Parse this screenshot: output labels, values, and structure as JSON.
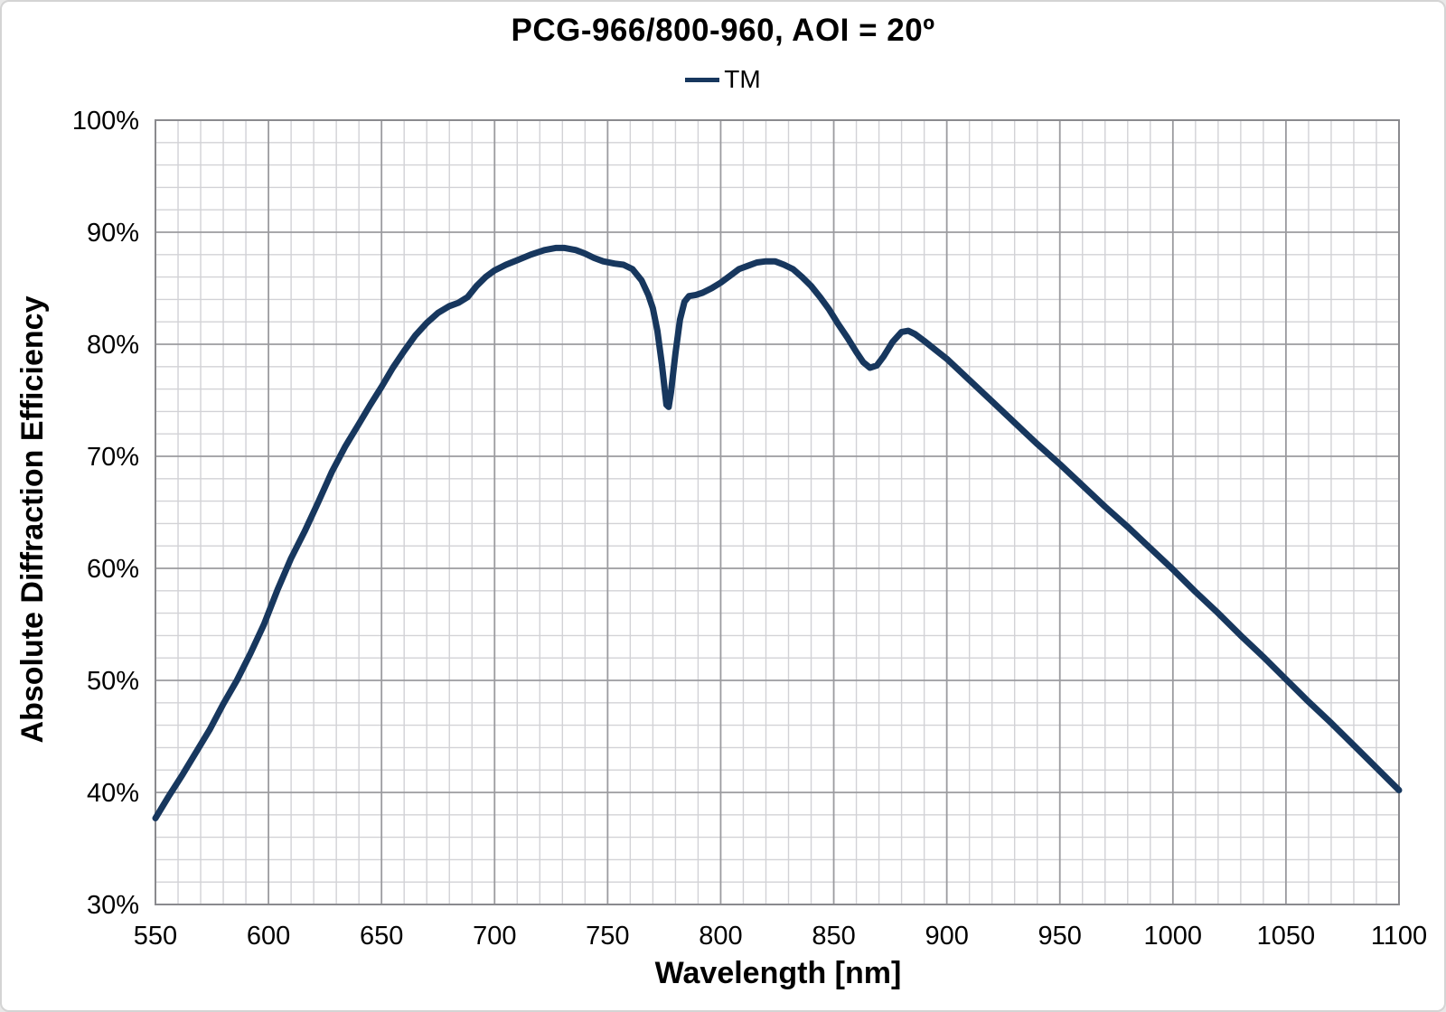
{
  "figure": {
    "title": "PCG-966/800-960, AOI = 20º",
    "legend": {
      "label": "TM"
    }
  },
  "chart_data": {
    "type": "line",
    "title": "PCG-966/800-960, AOI = 20º",
    "legend_entries": [
      "TM"
    ],
    "legend_position": "top-center",
    "grid": "major and minor gridlines on, full plot border",
    "x_axis": {
      "title": "Wavelength [nm]",
      "min": 550,
      "max": 1100,
      "major_step": 50,
      "minor_step": 10,
      "ticks": [
        {
          "v": 550,
          "label": "550"
        },
        {
          "v": 600,
          "label": "600"
        },
        {
          "v": 650,
          "label": "650"
        },
        {
          "v": 700,
          "label": "700"
        },
        {
          "v": 750,
          "label": "750"
        },
        {
          "v": 800,
          "label": "800"
        },
        {
          "v": 850,
          "label": "850"
        },
        {
          "v": 900,
          "label": "900"
        },
        {
          "v": 950,
          "label": "950"
        },
        {
          "v": 1000,
          "label": "1000"
        },
        {
          "v": 1050,
          "label": "1050"
        },
        {
          "v": 1100,
          "label": "1100"
        }
      ]
    },
    "y_axis": {
      "title": "Absolute Diffraction Efficiency",
      "min": 30,
      "max": 100,
      "major_step": 10,
      "minor_step": 2,
      "unit": "%",
      "ticks": [
        {
          "v": 100,
          "label": "100%"
        },
        {
          "v": 90,
          "label": "90%"
        },
        {
          "v": 80,
          "label": "80%"
        },
        {
          "v": 70,
          "label": "70%"
        },
        {
          "v": 60,
          "label": "60%"
        },
        {
          "v": 50,
          "label": "50%"
        },
        {
          "v": 40,
          "label": "40%"
        },
        {
          "v": 30,
          "label": "30%"
        }
      ]
    },
    "colors": {
      "series_tm": "#17375E",
      "grid_minor": "#d2d2d6",
      "grid_major": "#9b9b9f",
      "plot_border": "#8a8a8e",
      "text": "#000000"
    },
    "series": [
      {
        "name": "TM",
        "color_key": "series_tm",
        "stroke_width": 7,
        "points": [
          [
            550,
            37.7
          ],
          [
            556,
            39.7
          ],
          [
            562,
            41.6
          ],
          [
            568,
            43.6
          ],
          [
            574,
            45.6
          ],
          [
            580,
            47.9
          ],
          [
            586,
            50.0
          ],
          [
            592,
            52.4
          ],
          [
            598,
            55.0
          ],
          [
            604,
            58.1
          ],
          [
            610,
            60.9
          ],
          [
            616,
            63.3
          ],
          [
            622,
            65.9
          ],
          [
            628,
            68.6
          ],
          [
            634,
            70.9
          ],
          [
            640,
            72.9
          ],
          [
            645,
            74.6
          ],
          [
            650,
            76.2
          ],
          [
            655,
            77.9
          ],
          [
            660,
            79.4
          ],
          [
            665,
            80.8
          ],
          [
            670,
            81.9
          ],
          [
            675,
            82.8
          ],
          [
            680,
            83.4
          ],
          [
            684,
            83.7
          ],
          [
            688,
            84.2
          ],
          [
            692,
            85.2
          ],
          [
            696,
            86.0
          ],
          [
            700,
            86.6
          ],
          [
            705,
            87.1
          ],
          [
            710,
            87.5
          ],
          [
            716,
            88.0
          ],
          [
            722,
            88.4
          ],
          [
            727,
            88.6
          ],
          [
            731,
            88.6
          ],
          [
            736,
            88.4
          ],
          [
            740,
            88.1
          ],
          [
            744,
            87.7
          ],
          [
            748,
            87.4
          ],
          [
            753,
            87.2
          ],
          [
            757,
            87.1
          ],
          [
            761,
            86.7
          ],
          [
            765,
            85.7
          ],
          [
            768,
            84.4
          ],
          [
            770,
            83.2
          ],
          [
            772,
            81.2
          ],
          [
            774,
            78.2
          ],
          [
            776,
            74.6
          ],
          [
            777,
            74.4
          ],
          [
            778,
            75.7
          ],
          [
            780,
            79.2
          ],
          [
            782,
            82.2
          ],
          [
            784,
            83.8
          ],
          [
            786,
            84.3
          ],
          [
            789,
            84.4
          ],
          [
            792,
            84.6
          ],
          [
            796,
            85.0
          ],
          [
            800,
            85.5
          ],
          [
            804,
            86.1
          ],
          [
            808,
            86.7
          ],
          [
            812,
            87.0
          ],
          [
            816,
            87.3
          ],
          [
            820,
            87.4
          ],
          [
            824,
            87.4
          ],
          [
            828,
            87.1
          ],
          [
            832,
            86.7
          ],
          [
            836,
            86.0
          ],
          [
            840,
            85.2
          ],
          [
            844,
            84.2
          ],
          [
            848,
            83.1
          ],
          [
            852,
            81.8
          ],
          [
            856,
            80.6
          ],
          [
            860,
            79.3
          ],
          [
            863,
            78.4
          ],
          [
            866,
            77.9
          ],
          [
            869,
            78.1
          ],
          [
            872,
            78.9
          ],
          [
            876,
            80.2
          ],
          [
            880,
            81.1
          ],
          [
            883,
            81.2
          ],
          [
            886,
            80.9
          ],
          [
            890,
            80.3
          ],
          [
            895,
            79.5
          ],
          [
            900,
            78.7
          ],
          [
            910,
            76.8
          ],
          [
            920,
            74.9
          ],
          [
            930,
            73.0
          ],
          [
            940,
            71.1
          ],
          [
            950,
            69.3
          ],
          [
            960,
            67.4
          ],
          [
            970,
            65.5
          ],
          [
            980,
            63.7
          ],
          [
            990,
            61.8
          ],
          [
            1000,
            59.9
          ],
          [
            1010,
            57.9
          ],
          [
            1020,
            56.0
          ],
          [
            1030,
            54.0
          ],
          [
            1040,
            52.1
          ],
          [
            1050,
            50.1
          ],
          [
            1060,
            48.1
          ],
          [
            1070,
            46.2
          ],
          [
            1080,
            44.2
          ],
          [
            1090,
            42.2
          ],
          [
            1100,
            40.2
          ]
        ]
      }
    ]
  }
}
